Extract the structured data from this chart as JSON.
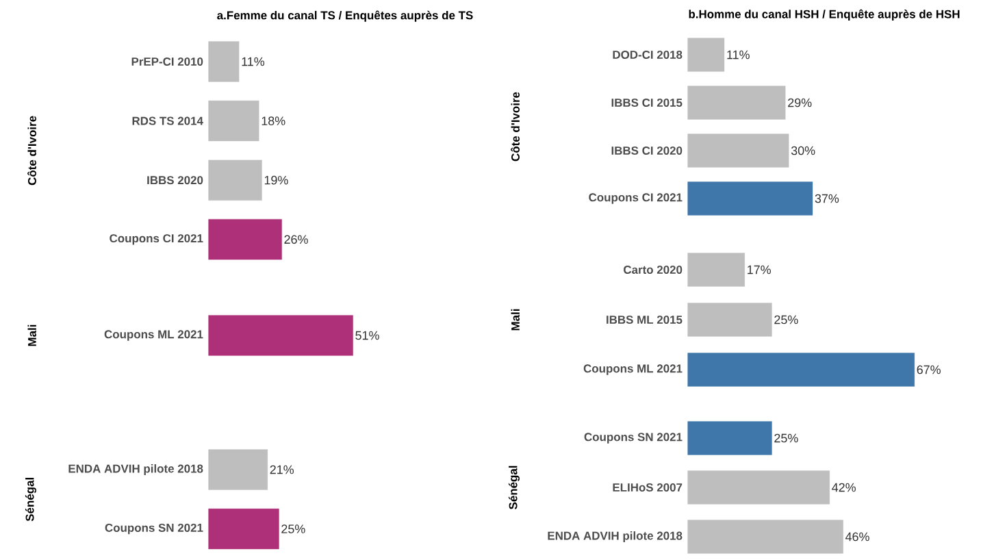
{
  "chart_data": [
    {
      "type": "bar",
      "orientation": "horizontal",
      "title": "a.Femme du canal TS / Enquêtes auprès de TS",
      "ylabel": "Côte d'Ivoire",
      "categories": [
        "PrEP-CI 2010",
        "RDS TS 2014",
        "IBBS 2020",
        "Coupons CI 2021"
      ],
      "values": [
        11,
        18,
        19,
        26
      ],
      "colors": [
        "#bebebe",
        "#bebebe",
        "#bebebe",
        "#ae3078"
      ],
      "value_labels": [
        "11%",
        "18%",
        "19%",
        "26%"
      ],
      "tick_labels": "y"
    },
    {
      "type": "bar",
      "orientation": "horizontal",
      "ylabel": "Mali",
      "categories": [
        "Coupons ML 2021"
      ],
      "values": [
        51
      ],
      "colors": [
        "#ae3078"
      ],
      "value_labels": [
        "51%"
      ],
      "tick_labels": "y"
    },
    {
      "type": "bar",
      "orientation": "horizontal",
      "ylabel": "Sénégal",
      "categories": [
        "ENDA ADVIH pilote 2018",
        "Coupons SN 2021"
      ],
      "values": [
        21,
        25
      ],
      "colors": [
        "#bebebe",
        "#ae3078"
      ],
      "value_labels": [
        "21%",
        "25%"
      ],
      "tick_labels": "y"
    },
    {
      "type": "bar",
      "orientation": "horizontal",
      "title": "b.Homme du canal HSH / Enquête auprès de HSH",
      "ylabel": "Côte d'Ivoire",
      "categories": [
        "DOD-CI 2018",
        "IBBS CI 2015",
        "IBBS CI 2020",
        "Coupons CI 2021"
      ],
      "values": [
        11,
        29,
        30,
        37
      ],
      "colors": [
        "#bebebe",
        "#bebebe",
        "#bebebe",
        "#3f77ab"
      ],
      "value_labels": [
        "11%",
        "29%",
        "30%",
        "37%"
      ],
      "tick_labels": "y"
    },
    {
      "type": "bar",
      "orientation": "horizontal",
      "ylabel": "Mali",
      "categories": [
        "Carto 2020",
        "IBBS ML 2015",
        "Coupons ML 2021"
      ],
      "values": [
        17,
        25,
        67
      ],
      "colors": [
        "#bebebe",
        "#bebebe",
        "#3f77ab"
      ],
      "value_labels": [
        "17%",
        "25%",
        "67%"
      ],
      "tick_labels": "y"
    },
    {
      "type": "bar",
      "orientation": "horizontal",
      "ylabel": "Sénégal",
      "categories": [
        "Coupons SN 2021",
        "ELIHoS 2007",
        "ENDA ADVIH pilote 2018"
      ],
      "values": [
        25,
        42,
        46
      ],
      "colors": [
        "#3f77ab",
        "#bebebe",
        "#bebebe"
      ],
      "value_labels": [
        "25%",
        "42%",
        "46%"
      ],
      "tick_labels": "y"
    }
  ]
}
